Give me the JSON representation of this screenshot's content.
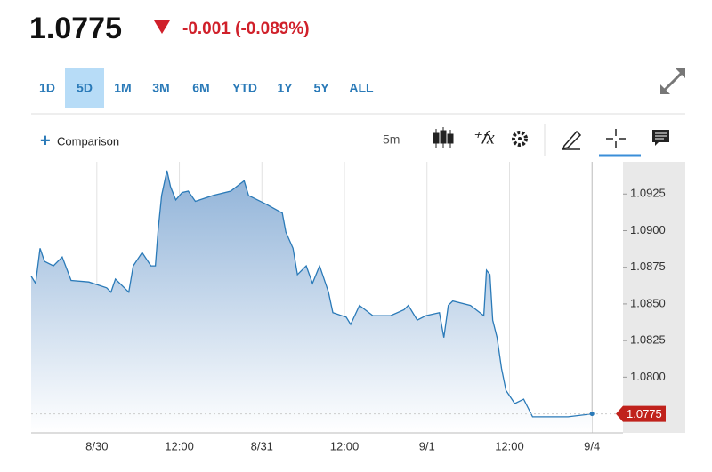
{
  "header": {
    "price": "1.0775",
    "change": "-0.001 (-0.089%)"
  },
  "tabs": [
    "1D",
    "5D",
    "1M",
    "3M",
    "6M",
    "YTD",
    "1Y",
    "5Y",
    "ALL"
  ],
  "selected_tab": 1,
  "toolbar": {
    "comparison": "Comparison",
    "interval": "5m"
  },
  "chart_data": {
    "type": "area",
    "color": "#2a7ab8",
    "x": [
      -9.55,
      -8.9,
      -8.26,
      -7.61,
      -6.32,
      -5.03,
      -3.74,
      -1.16,
      1.42,
      2.06,
      2.71,
      4.65,
      5.29,
      6.58,
      7.87,
      8.52,
      8.9,
      9.42,
      10.19,
      10.71,
      11.48,
      12.39,
      13.29,
      14.32,
      16.9,
      19.48,
      21.42,
      22.06,
      24.65,
      26.97,
      27.48,
      28.52,
      29.16,
      30.45,
      31.35,
      32.39,
      33.68,
      34.32,
      36.26,
      36.9,
      38.19,
      40.13,
      42.71,
      44.65,
      45.29,
      46.58,
      47.87,
      49.81,
      50.45,
      51.1,
      51.74,
      54.32,
      56.26,
      56.65,
      57.16,
      57.55,
      58.19,
      58.84,
      59.48,
      60.77,
      62.06,
      63.35,
      65.94,
      68.52,
      72
    ],
    "values": [
      1.0869,
      1.0864,
      1.0888,
      1.0879,
      1.0876,
      1.0882,
      1.0866,
      1.0865,
      1.0861,
      1.0858,
      1.0867,
      1.0858,
      1.0876,
      1.0885,
      1.0876,
      1.0876,
      1.09,
      1.0924,
      1.0941,
      1.093,
      1.0921,
      1.0926,
      1.0927,
      1.092,
      1.0924,
      1.0927,
      1.0934,
      1.0924,
      1.0918,
      1.0912,
      1.0899,
      1.0888,
      1.087,
      1.0876,
      1.0864,
      1.0876,
      1.0858,
      1.0844,
      1.0841,
      1.0836,
      1.0849,
      1.0842,
      1.0842,
      1.0846,
      1.0849,
      1.0839,
      1.0842,
      1.0844,
      1.0827,
      1.0849,
      1.0852,
      1.0849,
      1.0842,
      1.0873,
      1.087,
      1.0839,
      1.0827,
      1.0806,
      1.0791,
      1.0782,
      1.0785,
      1.0773,
      1.0773,
      1.0773,
      1.0775
    ],
    "last_value_label": "1.0775",
    "xlim": [
      -9.55,
      76.5
    ],
    "xticks": [
      {
        "value": 0,
        "label": "8/30"
      },
      {
        "value": 12,
        "label": "12:00"
      },
      {
        "value": 24,
        "label": "8/31"
      },
      {
        "value": 36,
        "label": "12:00"
      },
      {
        "value": 48,
        "label": "9/1"
      },
      {
        "value": 60,
        "label": "12:00"
      },
      {
        "value": 72,
        "label": "9/4"
      }
    ],
    "ylim": [
      1.0762,
      1.0947
    ],
    "yticks": [
      {
        "value": 1.08,
        "label": "1.0800"
      },
      1.0825,
      {
        "value": 1.085,
        "label": "1.0850"
      },
      1.0875,
      {
        "value": 1.09,
        "label": "1.0900"
      },
      1.0925
    ],
    "grid": true
  }
}
